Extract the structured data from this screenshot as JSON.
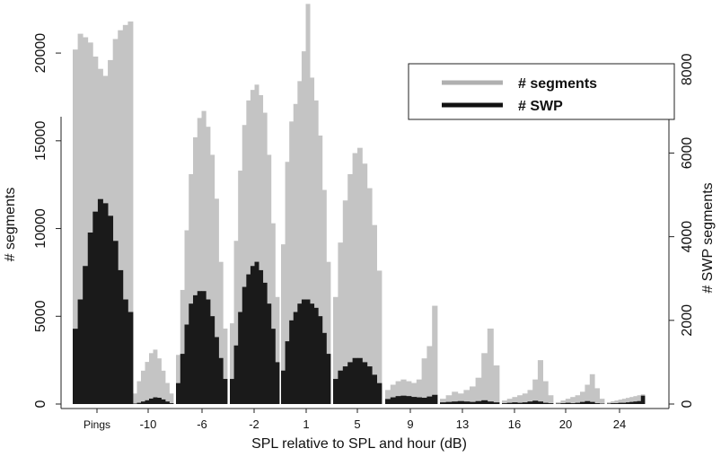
{
  "chart_data": {
    "type": "bar",
    "title": "",
    "xlabel": "SPL relative to SPL and hour (dB)",
    "ylabel_left": "# segments",
    "ylabel_right": "# SWP segments",
    "x_tick_labels": [
      "Pings",
      "-10",
      "-6",
      "-2",
      "1",
      "5",
      "9",
      "13",
      "16",
      "20",
      "24"
    ],
    "y_left_ticks": [
      "0",
      "5000",
      "10000",
      "15000",
      "20000"
    ],
    "y_right_ticks": [
      "0",
      "2000",
      "4000",
      "6000",
      "8000"
    ],
    "ylim_left": [
      0,
      22000
    ],
    "ylim_right": [
      0,
      8800
    ],
    "legend_position": "top-right",
    "series": [
      {
        "name": "# segments",
        "color": "#c4c4c4",
        "axis": "left",
        "groups": [
          {
            "label": "Pings",
            "values": [
              20200,
              21100,
              20900,
              20600,
              19800,
              19100,
              18700,
              19600,
              20800,
              21300,
              21600,
              21800
            ]
          },
          {
            "label": "-10",
            "values": [
              600,
              1300,
              1900,
              2400,
              2900,
              3100,
              2600,
              1900,
              1200,
              600
            ]
          },
          {
            "label": "-6",
            "values": [
              2800,
              6500,
              9900,
              13100,
              15200,
              16300,
              16700,
              15800,
              14200,
              11700,
              8100,
              4300
            ]
          },
          {
            "label": "-2",
            "values": [
              4600,
              9300,
              13300,
              15900,
              17300,
              17900,
              18200,
              17600,
              16600,
              14200,
              10300,
              6100
            ]
          },
          {
            "label": "1",
            "values": [
              9100,
              13800,
              16100,
              17100,
              18400,
              20100,
              22800,
              18600,
              17300,
              15300,
              12200,
              8100
            ]
          },
          {
            "label": "5",
            "values": [
              6100,
              9200,
              11600,
              13100,
              14300,
              14600,
              13700,
              12300,
              10200,
              7600
            ]
          },
          {
            "label": "9",
            "values": [
              800,
              1100,
              1300,
              1400,
              1300,
              1200,
              1400,
              2600,
              3300,
              5600
            ]
          },
          {
            "label": "13",
            "values": [
              300,
              500,
              700,
              600,
              800,
              1000,
              1500,
              2900,
              4300,
              2200
            ]
          },
          {
            "label": "16",
            "values": [
              200,
              300,
              400,
              500,
              600,
              800,
              1400,
              2500,
              1300,
              500
            ]
          },
          {
            "label": "20",
            "values": [
              100,
              200,
              300,
              400,
              500,
              700,
              1100,
              1700,
              900,
              300
            ]
          },
          {
            "label": "24",
            "values": [
              100,
              150,
              200,
              250,
              300,
              350,
              400,
              450,
              500,
              550
            ]
          }
        ]
      },
      {
        "name": "# SWP",
        "color": "#1a1a1a",
        "axis": "right",
        "groups": [
          {
            "label": "Pings",
            "values": [
              1800,
              2500,
              3300,
              4100,
              4600,
              4900,
              4800,
              4500,
              3900,
              3200,
              2500,
              2200
            ]
          },
          {
            "label": "-10",
            "values": [
              10,
              30,
              60,
              90,
              130,
              160,
              150,
              110,
              60,
              20
            ]
          },
          {
            "label": "-6",
            "values": [
              500,
              1200,
              1900,
              2400,
              2600,
              2700,
              2700,
              2500,
              2100,
              1600,
              1100,
              600
            ]
          },
          {
            "label": "-2",
            "values": [
              600,
              1400,
              2200,
              2800,
              3100,
              3300,
              3400,
              3200,
              2900,
              2400,
              1800,
              1000
            ]
          },
          {
            "label": "1",
            "values": [
              800,
              1500,
              2000,
              2200,
              2400,
              2500,
              2500,
              2400,
              2300,
              2100,
              1700,
              1200
            ]
          },
          {
            "label": "5",
            "values": [
              600,
              800,
              900,
              1000,
              1100,
              1100,
              1000,
              900,
              700,
              500
            ]
          },
          {
            "label": "9",
            "values": [
              120,
              160,
              190,
              200,
              190,
              170,
              160,
              150,
              180,
              220
            ]
          },
          {
            "label": "13",
            "values": [
              40,
              50,
              60,
              70,
              60,
              50,
              70,
              90,
              60,
              40
            ]
          },
          {
            "label": "16",
            "values": [
              20,
              30,
              40,
              30,
              40,
              60,
              80,
              60,
              30,
              20
            ]
          },
          {
            "label": "20",
            "values": [
              10,
              20,
              30,
              20,
              30,
              50,
              70,
              50,
              20,
              10
            ]
          },
          {
            "label": "24",
            "values": [
              10,
              20,
              20,
              30,
              30,
              40,
              50,
              60,
              70,
              200
            ]
          }
        ]
      }
    ]
  }
}
